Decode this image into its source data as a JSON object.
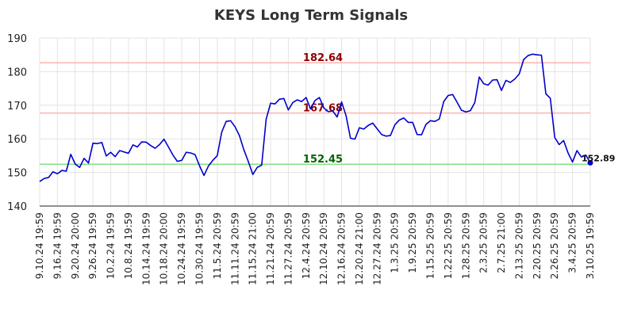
{
  "chart_data": {
    "type": "line",
    "title": "KEYS Long Term Signals",
    "xlabel": "",
    "ylabel": "",
    "ylim": [
      140,
      190
    ],
    "yticks": [
      140,
      150,
      160,
      170,
      180,
      190
    ],
    "grid": true,
    "xtick_labels": [
      "9.10.24 19:59",
      "9.16.24 19:59",
      "9.20.24 20:00",
      "9.26.24 19:59",
      "10.2.24 19:59",
      "10.8.24 19:59",
      "10.14.24 19:59",
      "10.18.24 20:00",
      "10.24.24 19:59",
      "10.30.24 19:59",
      "11.5.24 20:59",
      "11.11.24 20:59",
      "11.15.24 21:00",
      "11.21.24 20:59",
      "11.27.24 20:59",
      "12.4.24 20:59",
      "12.10.24 20:59",
      "12.16.24 20:59",
      "12.20.24 21:00",
      "12.27.24 20:59",
      "1.3.25 20:59",
      "1.9.25 20:59",
      "1.15.25 20:59",
      "1.22.25 20:59",
      "1.28.25 20:59",
      "2.3.25 20:59",
      "2.7.25 21:00",
      "2.13.25 20:59",
      "2.20.25 20:59",
      "2.26.25 20:59",
      "3.4.25 20:59",
      "3.10.25 19:59"
    ],
    "reference_lines": [
      {
        "value": 182.64,
        "label": "182.64",
        "line_color": "#ffb3b3",
        "label_color": "#8b0000"
      },
      {
        "value": 167.68,
        "label": "167.68",
        "line_color": "#ffb3b3",
        "label_color": "#8b0000"
      },
      {
        "value": 152.45,
        "label": "152.45",
        "line_color": "#88dd88",
        "label_color": "#006400"
      }
    ],
    "series": [
      {
        "color": "#0000cc",
        "values": [
          147.3,
          148.2,
          148.5,
          150.2,
          149.6,
          150.6,
          150.4,
          155.4,
          152.5,
          151.5,
          154.2,
          152.8,
          158.7,
          158.6,
          158.9,
          154.9,
          156.0,
          154.7,
          156.5,
          156.1,
          155.7,
          158.2,
          157.6,
          159.1,
          159.0,
          158.0,
          157.2,
          158.3,
          159.9,
          157.6,
          155.2,
          153.3,
          153.6,
          156.0,
          155.8,
          155.3,
          152.0,
          149.1,
          151.9,
          153.6,
          155.0,
          162.0,
          165.2,
          165.4,
          163.6,
          160.9,
          156.7,
          153.2,
          149.4,
          151.5,
          152.2,
          165.8,
          170.6,
          170.4,
          171.8,
          172.0,
          168.6,
          170.8,
          171.6,
          171.1,
          172.3,
          168.9,
          171.4,
          172.3,
          169.2,
          168.1,
          168.3,
          166.5,
          171.0,
          166.9,
          160.2,
          159.9,
          163.3,
          162.9,
          164.0,
          164.7,
          163.0,
          161.3,
          160.8,
          161.0,
          164.2,
          165.6,
          166.2,
          164.9,
          164.9,
          161.3,
          161.2,
          164.3,
          165.4,
          165.2,
          165.9,
          171.1,
          172.9,
          173.2,
          170.9,
          168.5,
          168.0,
          168.4,
          170.8,
          178.4,
          176.4,
          176.0,
          177.5,
          177.6,
          174.4,
          177.4,
          176.8,
          177.8,
          179.3,
          183.6,
          184.8,
          185.2,
          185.0,
          184.9,
          173.4,
          172.1,
          160.4,
          158.3,
          159.5,
          155.8,
          153.1,
          156.5,
          154.6,
          155.2,
          152.89
        ]
      }
    ],
    "last_value_label": "152.89",
    "last_marker_color": "#0000cc"
  }
}
